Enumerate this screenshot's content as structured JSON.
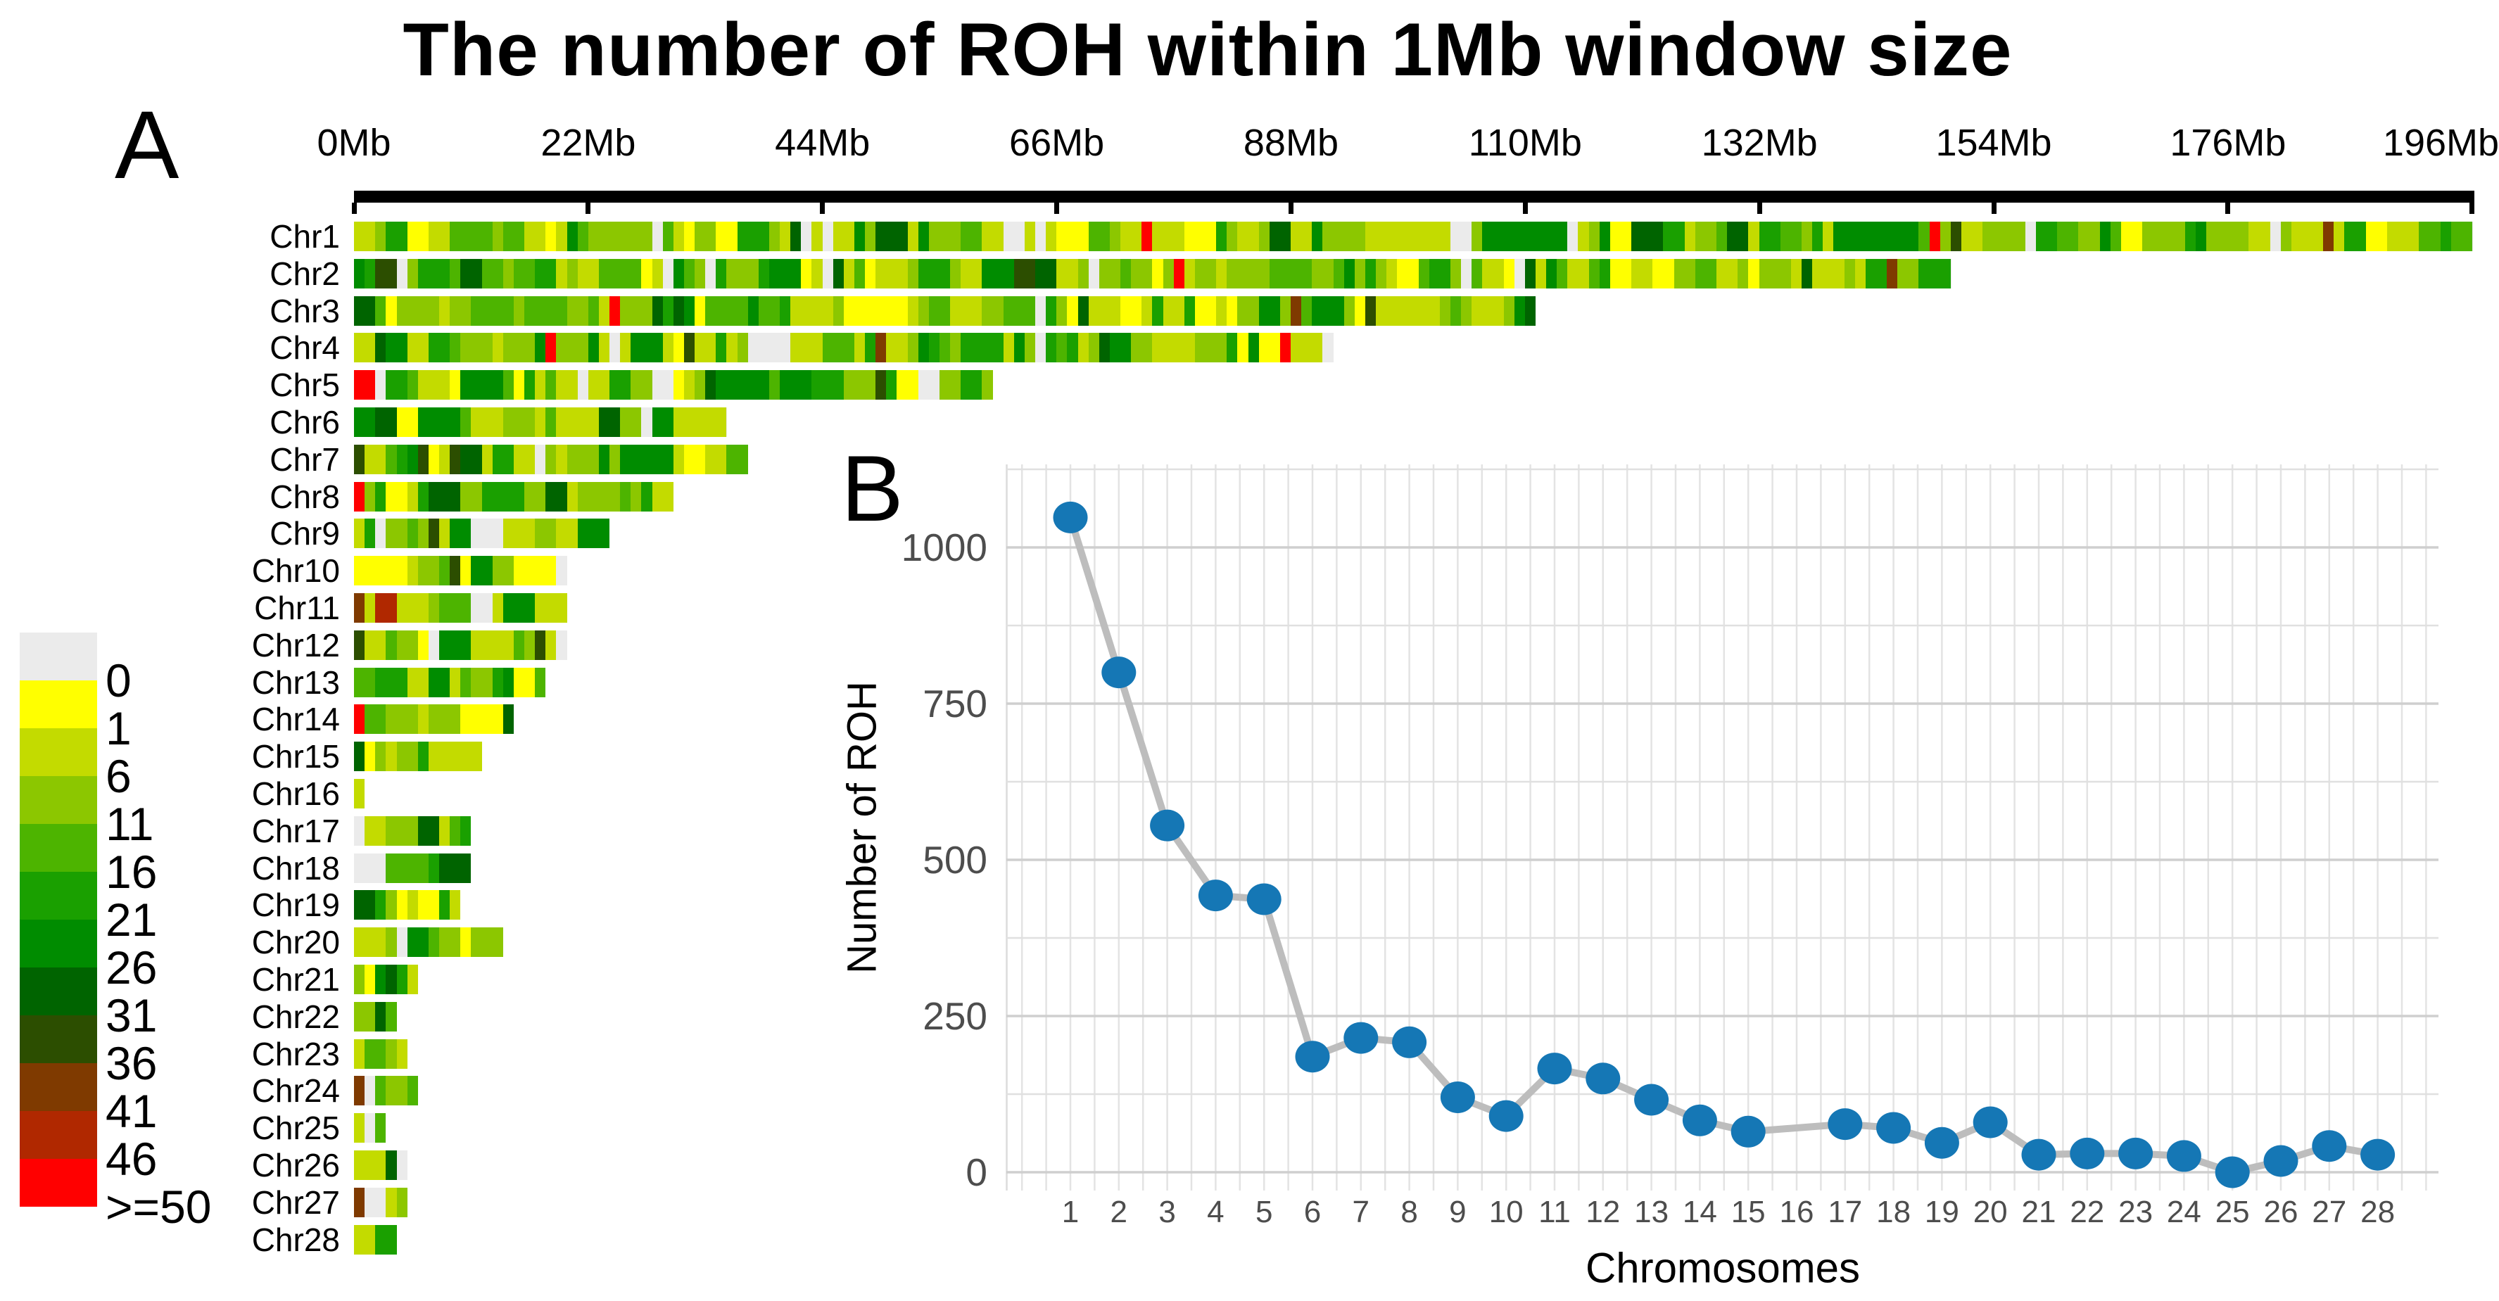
{
  "figure": {
    "title": "The number of ROH within 1Mb window size",
    "panel_a_label": "A",
    "panel_b_label": "B"
  },
  "chart_data": [
    {
      "panel": "A",
      "type": "heatmap",
      "description": "Number of ROH per 1Mb window along each chromosome",
      "x_ticks": [
        "0Mb",
        "22Mb",
        "44Mb",
        "66Mb",
        "88Mb",
        "110Mb",
        "132Mb",
        "154Mb",
        "176Mb",
        "196Mb"
      ],
      "x_tick_values_mb": [
        0,
        22,
        44,
        66,
        88,
        110,
        132,
        154,
        176,
        196
      ],
      "legend": {
        "labels": [
          "0",
          "1",
          "6",
          "11",
          "16",
          "21",
          "26",
          "31",
          "36",
          "41",
          "46",
          ">=50"
        ],
        "colors": [
          "#ebebeb",
          "#ffff00",
          "#c3db00",
          "#8cc700",
          "#4db400",
          "#1aa000",
          "#008c00",
          "#006400",
          "#2c4e00",
          "#7f3a00",
          "#b02800",
          "#ff0000"
        ]
      },
      "rows": [
        {
          "name": "Chr1",
          "length_mb": 199,
          "accents": [
            {
              "mb": 41,
              "bin": 7
            },
            {
              "mb": 74,
              "bin": 11
            },
            {
              "mb": 86,
              "bin": 7
            },
            {
              "mb": 87,
              "bin": 7
            },
            {
              "mb": 148,
              "bin": 11
            },
            {
              "mb": 185,
              "bin": 9
            }
          ]
        },
        {
          "name": "Chr2",
          "length_mb": 150,
          "accents": [
            {
              "mb": 2,
              "bin": 8
            },
            {
              "mb": 3,
              "bin": 8
            },
            {
              "mb": 10,
              "bin": 7
            },
            {
              "mb": 45,
              "bin": 7
            },
            {
              "mb": 63,
              "bin": 8
            },
            {
              "mb": 77,
              "bin": 11
            }
          ]
        },
        {
          "name": "Chr3",
          "length_mb": 111,
          "accents": [
            {
              "mb": 0,
              "bin": 7
            },
            {
              "mb": 1,
              "bin": 7
            },
            {
              "mb": 24,
              "bin": 11
            },
            {
              "mb": 95,
              "bin": 8
            }
          ]
        },
        {
          "name": "Chr4",
          "length_mb": 92,
          "accents": [
            {
              "mb": 3,
              "bin": 6
            },
            {
              "mb": 4,
              "bin": 6
            },
            {
              "mb": 18,
              "bin": 11
            },
            {
              "mb": 87,
              "bin": 11
            }
          ]
        },
        {
          "name": "Chr5",
          "length_mb": 60,
          "accents": [
            {
              "mb": 0,
              "bin": 11
            },
            {
              "mb": 1,
              "bin": 11
            },
            {
              "mb": 33,
              "bin": 7
            },
            {
              "mb": 49,
              "bin": 8
            }
          ]
        },
        {
          "name": "Chr6",
          "length_mb": 35,
          "accents": [
            {
              "mb": 28,
              "bin": 6
            }
          ]
        },
        {
          "name": "Chr7",
          "length_mb": 37,
          "accents": [
            {
              "mb": 0,
              "bin": 8
            },
            {
              "mb": 9,
              "bin": 8
            },
            {
              "mb": 10,
              "bin": 7
            }
          ]
        },
        {
          "name": "Chr8",
          "length_mb": 30,
          "accents": [
            {
              "mb": 0,
              "bin": 11
            },
            {
              "mb": 7,
              "bin": 7
            },
            {
              "mb": 8,
              "bin": 7
            },
            {
              "mb": 18,
              "bin": 7
            },
            {
              "mb": 19,
              "bin": 7
            }
          ]
        },
        {
          "name": "Chr9",
          "length_mb": 24,
          "accents": [
            {
              "mb": 21,
              "bin": 6
            }
          ]
        },
        {
          "name": "Chr10",
          "length_mb": 20,
          "accents": []
        },
        {
          "name": "Chr11",
          "length_mb": 20,
          "accents": [
            {
              "mb": 0,
              "bin": 9
            },
            {
              "mb": 2,
              "bin": 10
            },
            {
              "mb": 3,
              "bin": 10
            },
            {
              "mb": 14,
              "bin": 6
            },
            {
              "mb": 15,
              "bin": 6
            },
            {
              "mb": 16,
              "bin": 6
            }
          ]
        },
        {
          "name": "Chr12",
          "length_mb": 20,
          "accents": [
            {
              "mb": 0,
              "bin": 8
            },
            {
              "mb": 8,
              "bin": 6
            },
            {
              "mb": 9,
              "bin": 6
            }
          ]
        },
        {
          "name": "Chr13",
          "length_mb": 18,
          "accents": [
            {
              "mb": 7,
              "bin": 6
            }
          ]
        },
        {
          "name": "Chr14",
          "length_mb": 15,
          "accents": [
            {
              "mb": 0,
              "bin": 11
            }
          ]
        },
        {
          "name": "Chr15",
          "length_mb": 12,
          "accents": [
            {
              "mb": 0,
              "bin": 7
            }
          ]
        },
        {
          "name": "Chr16",
          "length_mb": 1,
          "accents": [
            {
              "mb": 0,
              "bin": 2
            }
          ]
        },
        {
          "name": "Chr17",
          "length_mb": 11,
          "accents": [
            {
              "mb": 0,
              "bin": 0
            },
            {
              "mb": 7,
              "bin": 7
            }
          ]
        },
        {
          "name": "Chr18",
          "length_mb": 11,
          "accents": [
            {
              "mb": 0,
              "bin": 0
            },
            {
              "mb": 8,
              "bin": 7
            },
            {
              "mb": 9,
              "bin": 7
            }
          ]
        },
        {
          "name": "Chr19",
          "length_mb": 10,
          "accents": [
            {
              "mb": 0,
              "bin": 7
            },
            {
              "mb": 1,
              "bin": 7
            }
          ]
        },
        {
          "name": "Chr20",
          "length_mb": 14,
          "accents": [
            {
              "mb": 5,
              "bin": 6
            },
            {
              "mb": 6,
              "bin": 6
            }
          ]
        },
        {
          "name": "Chr21",
          "length_mb": 6,
          "accents": [
            {
              "mb": 3,
              "bin": 7
            }
          ]
        },
        {
          "name": "Chr22",
          "length_mb": 4,
          "accents": [
            {
              "mb": 2,
              "bin": 7
            }
          ]
        },
        {
          "name": "Chr23",
          "length_mb": 5,
          "accents": []
        },
        {
          "name": "Chr24",
          "length_mb": 6,
          "accents": [
            {
              "mb": 0,
              "bin": 9
            }
          ]
        },
        {
          "name": "Chr25",
          "length_mb": 3,
          "accents": [
            {
              "mb": 1,
              "bin": 0
            }
          ]
        },
        {
          "name": "Chr26",
          "length_mb": 5,
          "accents": [
            {
              "mb": 3,
              "bin": 7
            }
          ]
        },
        {
          "name": "Chr27",
          "length_mb": 5,
          "accents": [
            {
              "mb": 0,
              "bin": 9
            },
            {
              "mb": 1,
              "bin": 0
            }
          ]
        },
        {
          "name": "Chr28",
          "length_mb": 4,
          "accents": []
        }
      ]
    },
    {
      "panel": "B",
      "type": "line",
      "x": [
        1,
        2,
        3,
        4,
        5,
        6,
        7,
        8,
        9,
        10,
        11,
        12,
        13,
        14,
        15,
        16,
        17,
        18,
        19,
        20,
        21,
        22,
        23,
        24,
        25,
        26,
        27,
        28
      ],
      "series": [
        {
          "name": "Number of ROH",
          "values": [
            1048,
            800,
            555,
            443,
            437,
            185,
            215,
            208,
            120,
            90,
            166,
            150,
            116,
            83,
            65,
            null,
            77,
            71,
            47,
            80,
            28,
            30,
            30,
            26,
            0,
            18,
            42,
            28
          ]
        }
      ],
      "xlabel": "Chromosomes",
      "ylabel": "Number of ROH",
      "yticks": [
        0,
        250,
        500,
        750,
        1000
      ],
      "ylim": [
        -35,
        1140
      ],
      "xlim": [
        0,
        29
      ],
      "grid": true,
      "legend_position": "none",
      "marker_color": "#1577b5",
      "line_color": "#bdbdbd"
    }
  ]
}
